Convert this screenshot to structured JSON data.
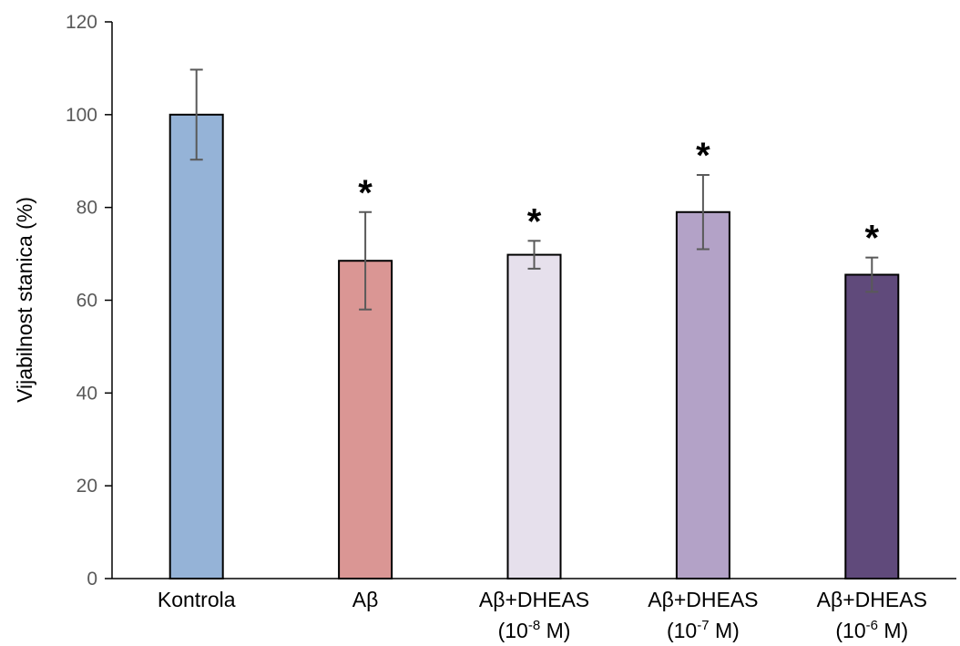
{
  "chart_data": {
    "type": "bar",
    "ylabel": "Vijabilnost stanica (%)",
    "ylim": [
      0,
      120
    ],
    "yticks": [
      0,
      20,
      40,
      60,
      80,
      100,
      120
    ],
    "grid": false,
    "legend": "none",
    "categories": [
      {
        "line1": "Kontrola",
        "line2": ""
      },
      {
        "line1": "Aβ",
        "line2": ""
      },
      {
        "line1": "Aβ+DHEAS",
        "line2_prefix": "(10",
        "line2_exp": "-8",
        "line2_suffix": " M)"
      },
      {
        "line1": "Aβ+DHEAS",
        "line2_prefix": "(10",
        "line2_exp": "-7",
        "line2_suffix": " M)"
      },
      {
        "line1": "Aβ+DHEAS",
        "line2_prefix": "(10",
        "line2_exp": "-6",
        "line2_suffix": " M)"
      }
    ],
    "values": [
      100,
      68.5,
      69.8,
      79,
      65.5
    ],
    "errors": [
      9.7,
      10.5,
      3,
      8,
      3.7
    ],
    "significance": [
      "",
      "*",
      "*",
      "*",
      "*"
    ],
    "colors": [
      "#95b3d7",
      "#da9694",
      "#e6e0ec",
      "#b3a2c7",
      "#604a7b"
    ]
  }
}
